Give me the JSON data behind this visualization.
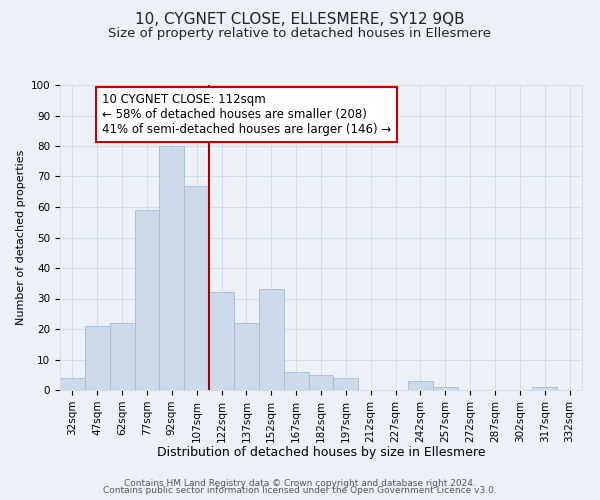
{
  "title": "10, CYGNET CLOSE, ELLESMERE, SY12 9QB",
  "subtitle": "Size of property relative to detached houses in Ellesmere",
  "xlabel": "Distribution of detached houses by size in Ellesmere",
  "ylabel": "Number of detached properties",
  "bar_labels": [
    "32sqm",
    "47sqm",
    "62sqm",
    "77sqm",
    "92sqm",
    "107sqm",
    "122sqm",
    "137sqm",
    "152sqm",
    "167sqm",
    "182sqm",
    "197sqm",
    "212sqm",
    "227sqm",
    "242sqm",
    "257sqm",
    "272sqm",
    "287sqm",
    "302sqm",
    "317sqm",
    "332sqm"
  ],
  "bar_values": [
    4,
    21,
    22,
    59,
    80,
    67,
    32,
    22,
    33,
    6,
    5,
    4,
    0,
    0,
    3,
    1,
    0,
    0,
    0,
    1,
    0
  ],
  "bar_color": "#ccdaeb",
  "bar_edge_color": "#a0bcd4",
  "grid_color": "#d4dce8",
  "background_color": "#edf1f7",
  "vline_x": 5.5,
  "vline_color": "#aa0000",
  "annotation_line1": "10 CYGNET CLOSE: 112sqm",
  "annotation_line2": "← 58% of detached houses are smaller (208)",
  "annotation_line3": "41% of semi-detached houses are larger (146) →",
  "annotation_box_color": "#ffffff",
  "annotation_box_edge_color": "#cc0000",
  "ylim": [
    0,
    100
  ],
  "footer1": "Contains HM Land Registry data © Crown copyright and database right 2024.",
  "footer2": "Contains public sector information licensed under the Open Government Licence v3.0.",
  "title_fontsize": 11,
  "subtitle_fontsize": 9.5,
  "xlabel_fontsize": 9,
  "ylabel_fontsize": 8,
  "tick_fontsize": 7.5,
  "annotation_fontsize": 8.5,
  "footer_fontsize": 6.5
}
